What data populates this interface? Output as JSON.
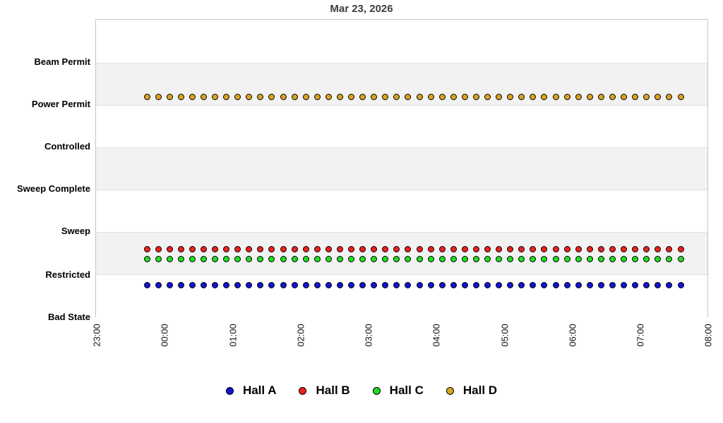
{
  "title": "Mar 23, 2026",
  "chart_data": {
    "type": "scatter",
    "title": "Mar 23, 2026",
    "x_axis": {
      "tick_labels": [
        "23:00",
        "00:00",
        "01:00",
        "02:00",
        "03:00",
        "04:00",
        "05:00",
        "06:00",
        "07:00",
        "08:00"
      ],
      "tick_label_rotation_deg": -90,
      "range": [
        "23:00",
        "08:00"
      ]
    },
    "y_axis": {
      "categories_top_to_bottom": [
        "Beam Permit",
        "Power Permit",
        "Controlled",
        "Sweep Complete",
        "Sweep",
        "Restricted",
        "Bad State"
      ]
    },
    "sampling": {
      "first_point": "23:45",
      "last_point": "07:35",
      "interval_minutes": 10,
      "num_points": 48
    },
    "series": [
      {
        "name": "Hall A",
        "color": "#1313d6",
        "state": "Restricted"
      },
      {
        "name": "Hall B",
        "color": "#ee2020",
        "state": "Restricted"
      },
      {
        "name": "Hall C",
        "color": "#22dd22",
        "state": "Restricted"
      },
      {
        "name": "Hall D",
        "color": "#d8a322",
        "state": "Power Permit"
      }
    ],
    "legend_position": "bottom",
    "grid": "alternating category bands",
    "band_fill_color": "#f2f2f2",
    "plot_border_color": "#c6c6c6"
  },
  "legend": {
    "items": [
      {
        "label": "Hall A",
        "color": "#1313d6"
      },
      {
        "label": "Hall B",
        "color": "#ee2020"
      },
      {
        "label": "Hall C",
        "color": "#22dd22"
      },
      {
        "label": "Hall D",
        "color": "#d8a322"
      }
    ]
  }
}
